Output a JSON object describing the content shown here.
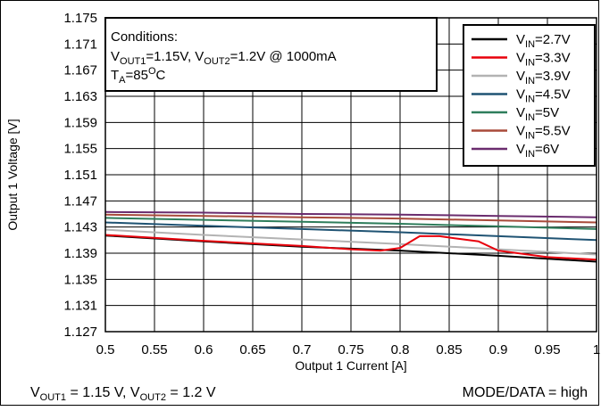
{
  "chart_data": {
    "type": "line",
    "xlabel": "Output 1 Current [A]",
    "ylabel": "Output 1 Voltage [V]",
    "xlim": [
      0.5,
      1.0
    ],
    "ylim": [
      1.127,
      1.175
    ],
    "x_ticks": [
      "0.5",
      "0.55",
      "0.6",
      "0.65",
      "0.7",
      "0.75",
      "0.8",
      "0.85",
      "0.9",
      "0.95",
      "1"
    ],
    "y_ticks": [
      "1.127",
      "1.131",
      "1.135",
      "1.139",
      "1.143",
      "1.147",
      "1.151",
      "1.155",
      "1.159",
      "1.163",
      "1.167",
      "1.171",
      "1.175"
    ],
    "grid": true,
    "legend_position": "top-right",
    "conditions": {
      "heading": "Conditions:",
      "line1_parts": [
        "V",
        "OUT1",
        "=1.15V, V",
        "OUT2",
        "=1.2V @ 1000mA"
      ],
      "line2_parts": [
        "T",
        "A",
        "=85",
        "O",
        "C"
      ]
    },
    "series": [
      {
        "name": "VIN=2.7V",
        "label_main": "V",
        "label_sub": "IN",
        "label_tail": "=2.7V",
        "color": "#000000",
        "x": [
          0.5,
          0.6,
          0.7,
          0.8,
          0.9,
          1.0
        ],
        "y": [
          1.1417,
          1.1408,
          1.14,
          1.1394,
          1.1386,
          1.1377
        ]
      },
      {
        "name": "VIN=3.3V",
        "label_main": "V",
        "label_sub": "IN",
        "label_tail": "=3.3V",
        "color": "#e8000b",
        "x": [
          0.5,
          0.6,
          0.7,
          0.75,
          0.78,
          0.8,
          0.82,
          0.84,
          0.86,
          0.88,
          0.9,
          0.95,
          1.0
        ],
        "y": [
          1.1418,
          1.1409,
          1.1401,
          1.1396,
          1.1394,
          1.1398,
          1.1416,
          1.1416,
          1.1412,
          1.1408,
          1.1394,
          1.1384,
          1.138
        ]
      },
      {
        "name": "VIN=3.9V",
        "label_main": "V",
        "label_sub": "IN",
        "label_tail": "=3.9V",
        "color": "#b3b3b3",
        "x": [
          0.5,
          0.6,
          0.7,
          0.8,
          0.9,
          1.0
        ],
        "y": [
          1.1426,
          1.1418,
          1.1411,
          1.1404,
          1.1396,
          1.1388
        ]
      },
      {
        "name": "VIN=4.5V",
        "label_main": "V",
        "label_sub": "IN",
        "label_tail": "=4.5V",
        "color": "#1f5373",
        "x": [
          0.5,
          0.6,
          0.7,
          0.8,
          0.9,
          1.0
        ],
        "y": [
          1.1437,
          1.1432,
          1.1427,
          1.1422,
          1.1416,
          1.141
        ]
      },
      {
        "name": "VIN=5V",
        "label_main": "V",
        "label_sub": "IN",
        "label_tail": "=5V",
        "color": "#2e7d5b",
        "x": [
          0.5,
          0.6,
          0.7,
          0.8,
          0.9,
          1.0
        ],
        "y": [
          1.1444,
          1.1441,
          1.1438,
          1.1435,
          1.1431,
          1.1427
        ]
      },
      {
        "name": "VIN=5.5V",
        "label_main": "V",
        "label_sub": "IN",
        "label_tail": "=5.5V",
        "color": "#a84a3a",
        "x": [
          0.5,
          0.6,
          0.7,
          0.8,
          0.9,
          1.0
        ],
        "y": [
          1.1449,
          1.1447,
          1.1445,
          1.1443,
          1.144,
          1.1437
        ]
      },
      {
        "name": "VIN=6V",
        "label_main": "V",
        "label_sub": "IN",
        "label_tail": "=6V",
        "color": "#6a2c6e",
        "x": [
          0.5,
          0.6,
          0.7,
          0.8,
          0.9,
          1.0
        ],
        "y": [
          1.1453,
          1.1452,
          1.145,
          1.1449,
          1.1447,
          1.1445
        ]
      }
    ]
  },
  "footer": {
    "left_parts": [
      "V",
      "OUT1",
      " = 1.15 V, V",
      "OUT2",
      " = 1.2 V"
    ],
    "right": "MODE/DATA = high"
  }
}
